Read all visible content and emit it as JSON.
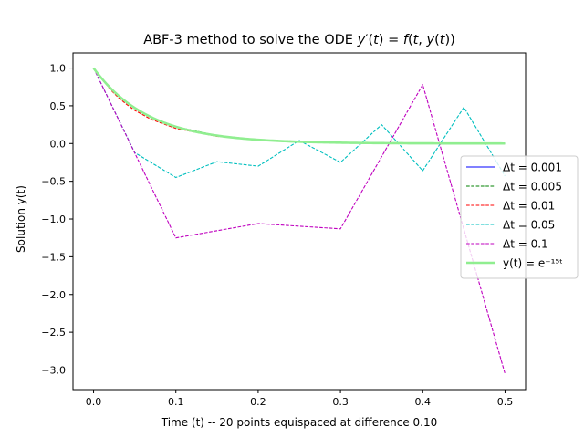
{
  "chart_data": {
    "type": "line",
    "title": "ABF-3 method to solve the ODE y′(t) = f(t, y(t))",
    "xlabel": "Time (t) -- 20 points equispaced at difference 0.10",
    "ylabel": "Solution y(t)",
    "xlim": [
      -0.025,
      0.525
    ],
    "ylim": [
      -3.26,
      1.2
    ],
    "xticks": [
      "0.0",
      "0.1",
      "0.2",
      "0.3",
      "0.4",
      "0.5"
    ],
    "yticks": [
      "1.0",
      "0.5",
      "0.0",
      "−0.5",
      "−1.0",
      "−1.5",
      "−2.0",
      "−2.5",
      "−3.0"
    ],
    "grid": false,
    "legend_position": "center-right",
    "legend": [
      "Δt = 0.001",
      "Δt = 0.005",
      "Δt = 0.01",
      "Δt = 0.05",
      "Δt = 0.1",
      "y(t) = e⁻¹⁵ᵗ"
    ],
    "series": [
      {
        "name": "Δt = 0.001",
        "color": "#0000ff",
        "dash": "solid",
        "formula": "exp",
        "x_range": [
          0,
          0.5
        ]
      },
      {
        "name": "Δt = 0.005",
        "color": "#008000",
        "dash": "dashed",
        "x": [
          0,
          0.005,
          0.01,
          0.015,
          0.02,
          0.03,
          0.04,
          0.05,
          0.07,
          0.1,
          0.15,
          0.2,
          0.3,
          0.4,
          0.5
        ],
        "y": [
          1,
          0.928,
          0.86,
          0.797,
          0.739,
          0.636,
          0.548,
          0.471,
          0.35,
          0.223,
          0.105,
          0.05,
          0.011,
          0.002,
          0.0
        ]
      },
      {
        "name": "Δt = 0.01",
        "color": "#ff0000",
        "dash": "dashed",
        "x": [
          0,
          0.01,
          0.02,
          0.03,
          0.04,
          0.05,
          0.07,
          0.1,
          0.15,
          0.2,
          0.3,
          0.4,
          0.5
        ],
        "y": [
          1,
          0.86,
          0.72,
          0.61,
          0.52,
          0.44,
          0.32,
          0.2,
          0.095,
          0.045,
          0.01,
          0.002,
          0.0
        ]
      },
      {
        "name": "Δt = 0.05",
        "color": "#00bfbf",
        "dash": "dashed",
        "x": [
          0,
          0.05,
          0.1,
          0.15,
          0.2,
          0.25,
          0.3,
          0.35,
          0.4,
          0.45,
          0.5
        ],
        "y": [
          1,
          -0.12,
          -0.45,
          -0.24,
          -0.3,
          0.04,
          -0.25,
          0.25,
          -0.36,
          0.48,
          -0.43
        ]
      },
      {
        "name": "Δt = 0.1",
        "color": "#bf00bf",
        "dash": "dashed",
        "x": [
          0,
          0.1,
          0.2,
          0.3,
          0.4,
          0.5
        ],
        "y": [
          1,
          -1.25,
          -1.06,
          -1.13,
          0.78,
          -3.05
        ]
      },
      {
        "name": "y(t) = e⁻¹⁵ᵗ",
        "color": "#90ee90",
        "dash": "solid",
        "formula": "exp",
        "x_range": [
          0,
          0.5
        ]
      }
    ]
  }
}
